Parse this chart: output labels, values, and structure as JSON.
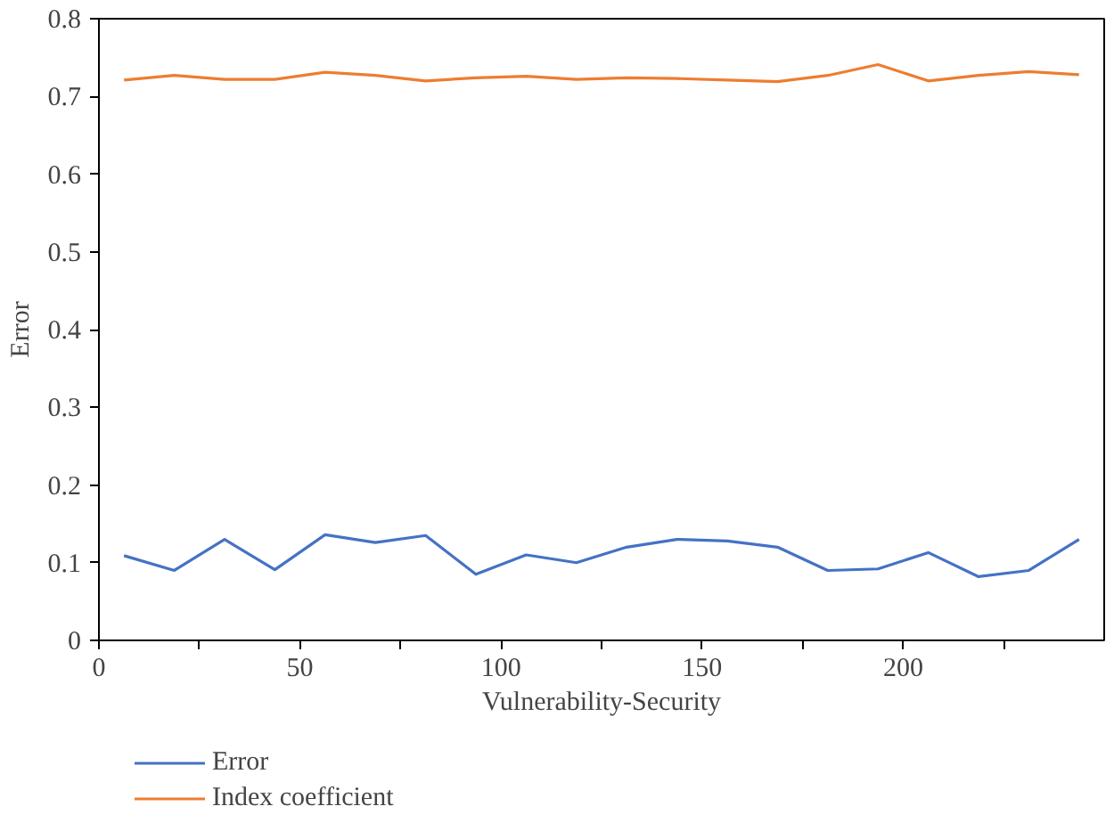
{
  "chart_data": {
    "type": "line",
    "xlabel": "Vulnerability-Security",
    "ylabel": "Error",
    "x": [
      6.25,
      18.75,
      31.25,
      43.75,
      56.25,
      68.75,
      81.25,
      93.75,
      106.25,
      118.75,
      131.25,
      143.75,
      156.25,
      168.75,
      181.25,
      193.75,
      206.25,
      218.75,
      231.25,
      243.75
    ],
    "series": [
      {
        "name": "Error",
        "color": "#4472c4",
        "values": [
          0.109,
          0.09,
          0.13,
          0.091,
          0.136,
          0.126,
          0.135,
          0.085,
          0.11,
          0.1,
          0.12,
          0.13,
          0.128,
          0.12,
          0.09,
          0.092,
          0.113,
          0.082,
          0.09,
          0.13
        ]
      },
      {
        "name": "Index coefficient",
        "color": "#ed7d31",
        "values": [
          0.721,
          0.727,
          0.722,
          0.722,
          0.731,
          0.727,
          0.72,
          0.724,
          0.726,
          0.722,
          0.724,
          0.723,
          0.721,
          0.719,
          0.727,
          0.741,
          0.72,
          0.727,
          0.732,
          0.728
        ]
      }
    ],
    "xlim": [
      0,
      250
    ],
    "xticks": [
      0,
      {
        "value": 25,
        "label": null
      },
      50,
      {
        "value": 75,
        "label": null
      },
      100,
      {
        "value": 125,
        "label": null
      },
      150,
      {
        "value": 175,
        "label": null
      },
      200,
      {
        "value": 225,
        "label": null
      }
    ],
    "ylim": [
      0,
      0.8
    ],
    "yticks": [
      0,
      0.1,
      0.2,
      0.3,
      0.4,
      0.5,
      0.6,
      0.7,
      0.8
    ],
    "grid": false,
    "legend": "bottom",
    "marker": "none",
    "line_style": "solid"
  }
}
